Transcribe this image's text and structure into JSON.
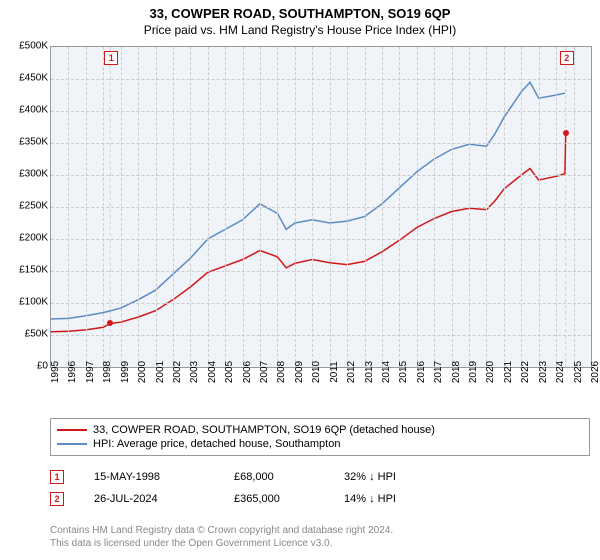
{
  "title": "33, COWPER ROAD, SOUTHAMPTON, SO19 6QP",
  "subtitle": "Price paid vs. HM Land Registry's House Price Index (HPI)",
  "chart": {
    "type": "line",
    "background_color": "#f0f4f8",
    "grid_color": "#cccccc",
    "border_color": "#999999",
    "xlim": [
      1995,
      2026
    ],
    "ylim": [
      0,
      500000
    ],
    "ytick_step": 50000,
    "yticks_labels": [
      "£0",
      "£50K",
      "£100K",
      "£150K",
      "£200K",
      "£250K",
      "£300K",
      "£350K",
      "£400K",
      "£450K",
      "£500K"
    ],
    "xticks": [
      1995,
      1996,
      1997,
      1998,
      1999,
      2000,
      2001,
      2002,
      2003,
      2004,
      2005,
      2006,
      2007,
      2008,
      2009,
      2010,
      2011,
      2012,
      2013,
      2014,
      2015,
      2016,
      2017,
      2018,
      2019,
      2020,
      2021,
      2022,
      2023,
      2024,
      2025,
      2026
    ],
    "series": [
      {
        "name": "HPI",
        "color": "#5b8bc4",
        "line_width": 1.5,
        "points": [
          [
            1995,
            75000
          ],
          [
            1996,
            76000
          ],
          [
            1997,
            80000
          ],
          [
            1998,
            85000
          ],
          [
            1999,
            92000
          ],
          [
            2000,
            105000
          ],
          [
            2001,
            120000
          ],
          [
            2002,
            145000
          ],
          [
            2003,
            170000
          ],
          [
            2004,
            200000
          ],
          [
            2005,
            215000
          ],
          [
            2006,
            230000
          ],
          [
            2007,
            255000
          ],
          [
            2008,
            240000
          ],
          [
            2008.5,
            215000
          ],
          [
            2009,
            225000
          ],
          [
            2010,
            230000
          ],
          [
            2011,
            225000
          ],
          [
            2012,
            228000
          ],
          [
            2013,
            235000
          ],
          [
            2014,
            255000
          ],
          [
            2015,
            280000
          ],
          [
            2016,
            305000
          ],
          [
            2017,
            325000
          ],
          [
            2018,
            340000
          ],
          [
            2019,
            348000
          ],
          [
            2020,
            345000
          ],
          [
            2020.5,
            365000
          ],
          [
            2021,
            390000
          ],
          [
            2022,
            430000
          ],
          [
            2022.5,
            445000
          ],
          [
            2023,
            420000
          ],
          [
            2024,
            425000
          ],
          [
            2024.5,
            428000
          ]
        ]
      },
      {
        "name": "Property",
        "color": "#d01818",
        "line_width": 1.5,
        "points": [
          [
            1995,
            55000
          ],
          [
            1996,
            56000
          ],
          [
            1997,
            58000
          ],
          [
            1998,
            62000
          ],
          [
            1998.4,
            68000
          ],
          [
            1999,
            70000
          ],
          [
            2000,
            78000
          ],
          [
            2001,
            88000
          ],
          [
            2002,
            105000
          ],
          [
            2003,
            125000
          ],
          [
            2004,
            148000
          ],
          [
            2005,
            158000
          ],
          [
            2006,
            168000
          ],
          [
            2007,
            182000
          ],
          [
            2008,
            172000
          ],
          [
            2008.5,
            155000
          ],
          [
            2009,
            162000
          ],
          [
            2010,
            168000
          ],
          [
            2011,
            163000
          ],
          [
            2012,
            160000
          ],
          [
            2013,
            165000
          ],
          [
            2014,
            180000
          ],
          [
            2015,
            198000
          ],
          [
            2016,
            218000
          ],
          [
            2017,
            232000
          ],
          [
            2018,
            243000
          ],
          [
            2019,
            248000
          ],
          [
            2020,
            246000
          ],
          [
            2020.5,
            260000
          ],
          [
            2021,
            278000
          ],
          [
            2022,
            300000
          ],
          [
            2022.5,
            310000
          ],
          [
            2023,
            292000
          ],
          [
            2024,
            298000
          ],
          [
            2024.5,
            302000
          ],
          [
            2024.55,
            365000
          ]
        ]
      }
    ],
    "sale_markers": [
      {
        "num": "1",
        "year": 1998.4,
        "color": "#d01818",
        "dot_value": 68000
      },
      {
        "num": "2",
        "year": 2024.55,
        "color": "#d01818",
        "dot_value": 365000
      }
    ],
    "marker_vline_color": "#cccccc"
  },
  "legend": {
    "items": [
      {
        "color": "#d01818",
        "label": "33, COWPER ROAD, SOUTHAMPTON, SO19 6QP (detached house)"
      },
      {
        "color": "#5b8bc4",
        "label": "HPI: Average price, detached house, Southampton"
      }
    ]
  },
  "sales": [
    {
      "num": "1",
      "color": "#d01818",
      "date": "15-MAY-1998",
      "price": "£68,000",
      "pct": "32% ↓ HPI"
    },
    {
      "num": "2",
      "color": "#d01818",
      "date": "26-JUL-2024",
      "price": "£365,000",
      "pct": "14% ↓ HPI"
    }
  ],
  "footer_line1": "Contains HM Land Registry data © Crown copyright and database right 2024.",
  "footer_line2": "This data is licensed under the Open Government Licence v3.0."
}
